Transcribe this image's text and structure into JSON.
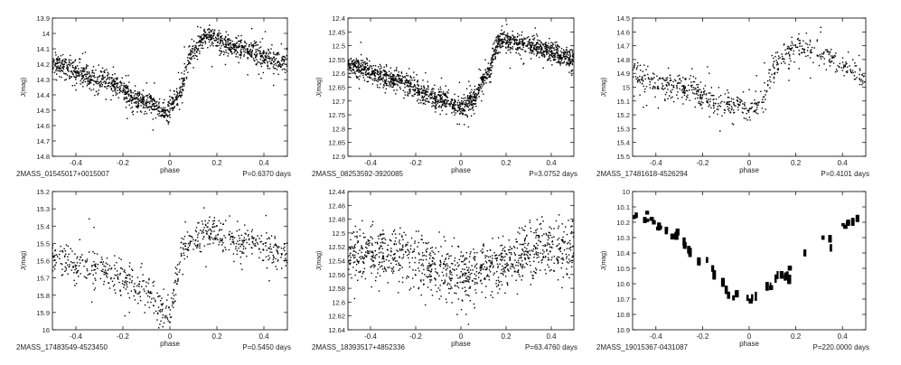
{
  "chart_data": [
    {
      "type": "scatter",
      "star": "2MASS_01545017+0015007",
      "period": "P=0.6370 days",
      "xlabel": "phase",
      "ylabel": "J(mag)",
      "xlim": [
        -0.5,
        0.5
      ],
      "ylim": [
        14.8,
        13.9
      ],
      "xticks": [
        "-0.4",
        "-0.2",
        "0",
        "0.2",
        "0.4"
      ],
      "xtick_values": [
        -0.4,
        -0.2,
        0,
        0.2,
        0.4
      ],
      "yticks": [
        "13.9",
        "14",
        "14.1",
        "14.2",
        "14.3",
        "14.4",
        "14.5",
        "14.6",
        "14.7",
        "14.8"
      ],
      "ytick_values": [
        13.9,
        14.0,
        14.1,
        14.2,
        14.3,
        14.4,
        14.5,
        14.6,
        14.7,
        14.8
      ],
      "curve": {
        "x": [
          -0.5,
          -0.3,
          -0.1,
          -0.02,
          0.03,
          0.1,
          0.15,
          0.3,
          0.5
        ],
        "y": [
          14.2,
          14.3,
          14.44,
          14.52,
          14.42,
          14.12,
          14.02,
          14.1,
          14.2
        ]
      },
      "scatter": {
        "n": 1400,
        "sd": 0.035,
        "outliers": 0.06,
        "spread": 0.3
      }
    },
    {
      "type": "scatter",
      "star": "2MASS_08253592-3920085",
      "period": "P=3.0752 days",
      "xlabel": "phase",
      "ylabel": "J(mag)",
      "xlim": [
        -0.5,
        0.5
      ],
      "ylim": [
        12.9,
        12.4
      ],
      "xticks": [
        "-0.4",
        "-0.2",
        "0",
        "0.2",
        "0.4"
      ],
      "xtick_values": [
        -0.4,
        -0.2,
        0,
        0.2,
        0.4
      ],
      "yticks": [
        "12.4",
        "12.45",
        "12.5",
        "12.55",
        "12.6",
        "12.65",
        "12.7",
        "12.75",
        "12.8",
        "12.85",
        "12.9"
      ],
      "ytick_values": [
        12.4,
        12.45,
        12.5,
        12.55,
        12.6,
        12.65,
        12.7,
        12.75,
        12.8,
        12.85,
        12.9
      ],
      "curve": {
        "x": [
          -0.5,
          -0.3,
          -0.1,
          0.0,
          0.05,
          0.1,
          0.18,
          0.3,
          0.5
        ],
        "y": [
          12.57,
          12.62,
          12.69,
          12.72,
          12.7,
          12.62,
          12.48,
          12.5,
          12.55
        ]
      },
      "scatter": {
        "n": 1600,
        "sd": 0.018,
        "outliers": 0.05,
        "spread": 0.15
      }
    },
    {
      "type": "scatter",
      "star": "2MASS_17481618-4526294",
      "period": "P=0.4101 days",
      "xlabel": "phase",
      "ylabel": "J(mag)",
      "xlim": [
        -0.5,
        0.5
      ],
      "ylim": [
        15.5,
        14.5
      ],
      "xticks": [
        "-0.4",
        "-0.2",
        "0",
        "0.2",
        "0.4"
      ],
      "xtick_values": [
        -0.4,
        -0.2,
        0,
        0.2,
        0.4
      ],
      "yticks": [
        "14.5",
        "14.6",
        "14.7",
        "14.8",
        "14.9",
        "15",
        "15.1",
        "15.2",
        "15.3",
        "15.4",
        "15.5"
      ],
      "ytick_values": [
        14.5,
        14.6,
        14.7,
        14.8,
        14.9,
        15.0,
        15.1,
        15.2,
        15.3,
        15.4,
        15.5
      ],
      "curve": {
        "x": [
          -0.5,
          -0.3,
          -0.1,
          0.0,
          0.05,
          0.12,
          0.2,
          0.35,
          0.5
        ],
        "y": [
          14.93,
          15.0,
          15.12,
          15.18,
          15.1,
          14.82,
          14.7,
          14.8,
          14.93
        ]
      },
      "scatter": {
        "n": 650,
        "sd": 0.045,
        "outliers": 0.05,
        "spread": 0.5
      }
    },
    {
      "type": "scatter",
      "star": "2MASS_17483549-4523450",
      "period": "P=0.5450 days",
      "xlabel": "phase",
      "ylabel": "J(mag)",
      "xlim": [
        -0.5,
        0.5
      ],
      "ylim": [
        16.0,
        15.2
      ],
      "xticks": [
        "-0.4",
        "-0.2",
        "0",
        "0.2",
        "0.4"
      ],
      "xtick_values": [
        -0.4,
        -0.2,
        0,
        0.2,
        0.4
      ],
      "yticks": [
        "15.2",
        "15.3",
        "15.4",
        "15.5",
        "15.6",
        "15.7",
        "15.8",
        "15.9",
        "16"
      ],
      "ytick_values": [
        15.2,
        15.3,
        15.4,
        15.5,
        15.6,
        15.7,
        15.8,
        15.9,
        16.0
      ],
      "curve": {
        "x": [
          -0.5,
          -0.3,
          -0.1,
          0.0,
          0.03,
          0.05,
          0.15,
          0.3,
          0.5
        ],
        "y": [
          15.57,
          15.65,
          15.77,
          15.9,
          15.7,
          15.52,
          15.43,
          15.5,
          15.57
        ]
      },
      "scatter": {
        "n": 700,
        "sd": 0.05,
        "outliers": 0.04,
        "spread": 0.4
      }
    },
    {
      "type": "scatter",
      "star": "2MASS_18393517+4852336",
      "period": "P=63.4760 days",
      "xlabel": "phase",
      "ylabel": "J(mag)",
      "xlim": [
        -0.5,
        0.5
      ],
      "ylim": [
        12.64,
        12.44
      ],
      "xticks": [
        "-0.4",
        "-0.2",
        "0",
        "0.2",
        "0.4"
      ],
      "xtick_values": [
        -0.4,
        -0.2,
        0,
        0.2,
        0.4
      ],
      "yticks": [
        "12.44",
        "12.46",
        "12.48",
        "12.5",
        "12.52",
        "12.54",
        "12.56",
        "12.58",
        "12.6",
        "12.62",
        "12.64"
      ],
      "ytick_values": [
        12.44,
        12.46,
        12.48,
        12.5,
        12.52,
        12.54,
        12.56,
        12.58,
        12.6,
        12.62,
        12.64
      ],
      "curve": {
        "x": [
          -0.5,
          -0.25,
          0.0,
          0.2,
          0.35,
          0.5
        ],
        "y": [
          12.53,
          12.535,
          12.56,
          12.545,
          12.52,
          12.525
        ]
      },
      "scatter": {
        "n": 1100,
        "sd": 0.02,
        "outliers": 0.03,
        "spread": 0.08
      }
    },
    {
      "type": "scatter",
      "star": "2MASS_19015367-0431087",
      "period": "P=220.0000 days",
      "xlabel": "phase",
      "ylabel": "J(mag)",
      "xlim": [
        -0.5,
        0.5
      ],
      "ylim": [
        10.9,
        10.0
      ],
      "xticks": [
        "-0.4",
        "-0.2",
        "0",
        "0.2",
        "0.4"
      ],
      "xtick_values": [
        -0.4,
        -0.2,
        0,
        0.2,
        0.4
      ],
      "yticks": [
        "10",
        "10.1",
        "10.2",
        "10.3",
        "10.4",
        "10.5",
        "10.6",
        "10.7",
        "10.8",
        "10.9"
      ],
      "ytick_values": [
        10.0,
        10.1,
        10.2,
        10.3,
        10.4,
        10.5,
        10.6,
        10.7,
        10.8,
        10.9
      ],
      "curve": {
        "x": [
          -0.5,
          -0.35,
          -0.2,
          -0.05,
          0.0,
          0.15,
          0.3,
          0.5
        ],
        "y": [
          10.15,
          10.25,
          10.45,
          10.7,
          10.68,
          10.55,
          10.35,
          10.15
        ]
      },
      "clusters": true,
      "scatter": {
        "n": 55,
        "sd": 0.015,
        "outliers": 0.0,
        "spread": 0.0
      }
    }
  ]
}
